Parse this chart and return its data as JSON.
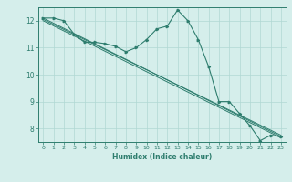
{
  "xlabel": "Humidex (Indice chaleur)",
  "ylabel": "",
  "background_color": "#d5eeeb",
  "grid_color": "#b0d8d4",
  "line_color": "#2e7d6e",
  "xlim": [
    -0.5,
    23.5
  ],
  "ylim": [
    7.5,
    12.5
  ],
  "yticks": [
    8,
    9,
    10,
    11,
    12
  ],
  "xticks": [
    0,
    1,
    2,
    3,
    4,
    5,
    6,
    7,
    8,
    9,
    10,
    11,
    12,
    13,
    14,
    15,
    16,
    17,
    18,
    19,
    20,
    21,
    22,
    23
  ],
  "series": {
    "main": {
      "x": [
        0,
        1,
        2,
        3,
        4,
        5,
        6,
        7,
        8,
        9,
        10,
        11,
        12,
        13,
        14,
        15,
        16,
        17,
        18,
        19,
        20,
        21,
        22,
        23
      ],
      "y": [
        12.1,
        12.1,
        12.0,
        11.5,
        11.2,
        11.2,
        11.15,
        11.05,
        10.85,
        11.0,
        11.3,
        11.7,
        11.8,
        12.4,
        12.0,
        11.3,
        10.3,
        9.0,
        9.0,
        8.55,
        8.1,
        7.55,
        7.75,
        7.7
      ]
    },
    "line1": {
      "x": [
        0,
        23
      ],
      "y": [
        12.1,
        7.7
      ]
    },
    "line2": {
      "x": [
        0,
        23
      ],
      "y": [
        12.05,
        7.75
      ]
    },
    "line3": {
      "x": [
        0,
        23
      ],
      "y": [
        12.0,
        7.65
      ]
    }
  }
}
